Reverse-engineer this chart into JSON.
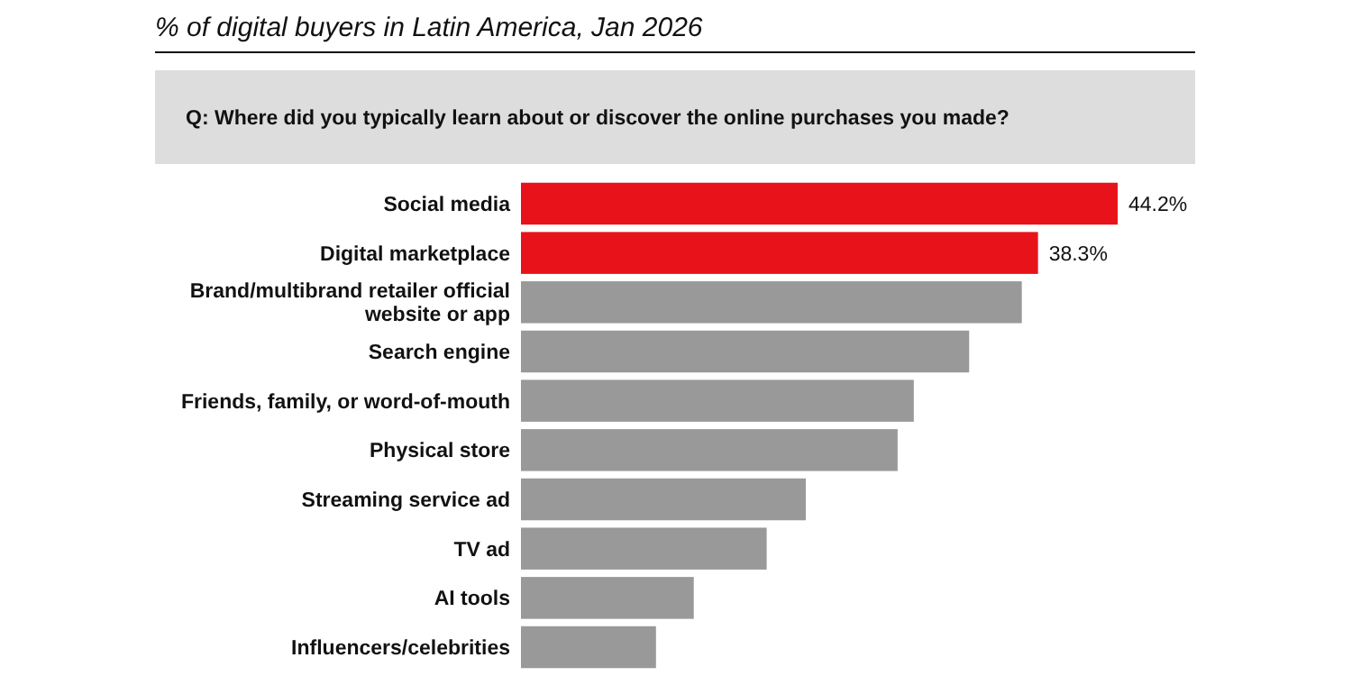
{
  "chart_data": {
    "type": "bar",
    "orientation": "horizontal",
    "subtitle": "% of digital buyers in Latin America, Jan 2026",
    "annotations": [
      "Q: Where did you typically learn about or discover the online purchases you made?"
    ],
    "categories": [
      "Social media",
      "Digital marketplace",
      "Brand/multibrand retailer official website or app",
      "Search engine",
      "Friends, family, or word-of-mouth",
      "Physical store",
      "Streaming service ad",
      "TV ad",
      "AI tools",
      "Influencers/celebrities"
    ],
    "values": [
      44.2,
      38.3,
      37.1,
      33.2,
      29.1,
      27.9,
      21.1,
      18.2,
      12.8,
      10.0
    ],
    "value_labels": [
      "44.2%",
      "38.3%",
      null,
      null,
      null,
      null,
      null,
      null,
      null,
      null
    ],
    "colors": [
      "#e8121b",
      "#e8121b",
      "#999999",
      "#999999",
      "#999999",
      "#999999",
      "#999999",
      "#999999",
      "#999999",
      "#999999"
    ],
    "grid": false
  }
}
